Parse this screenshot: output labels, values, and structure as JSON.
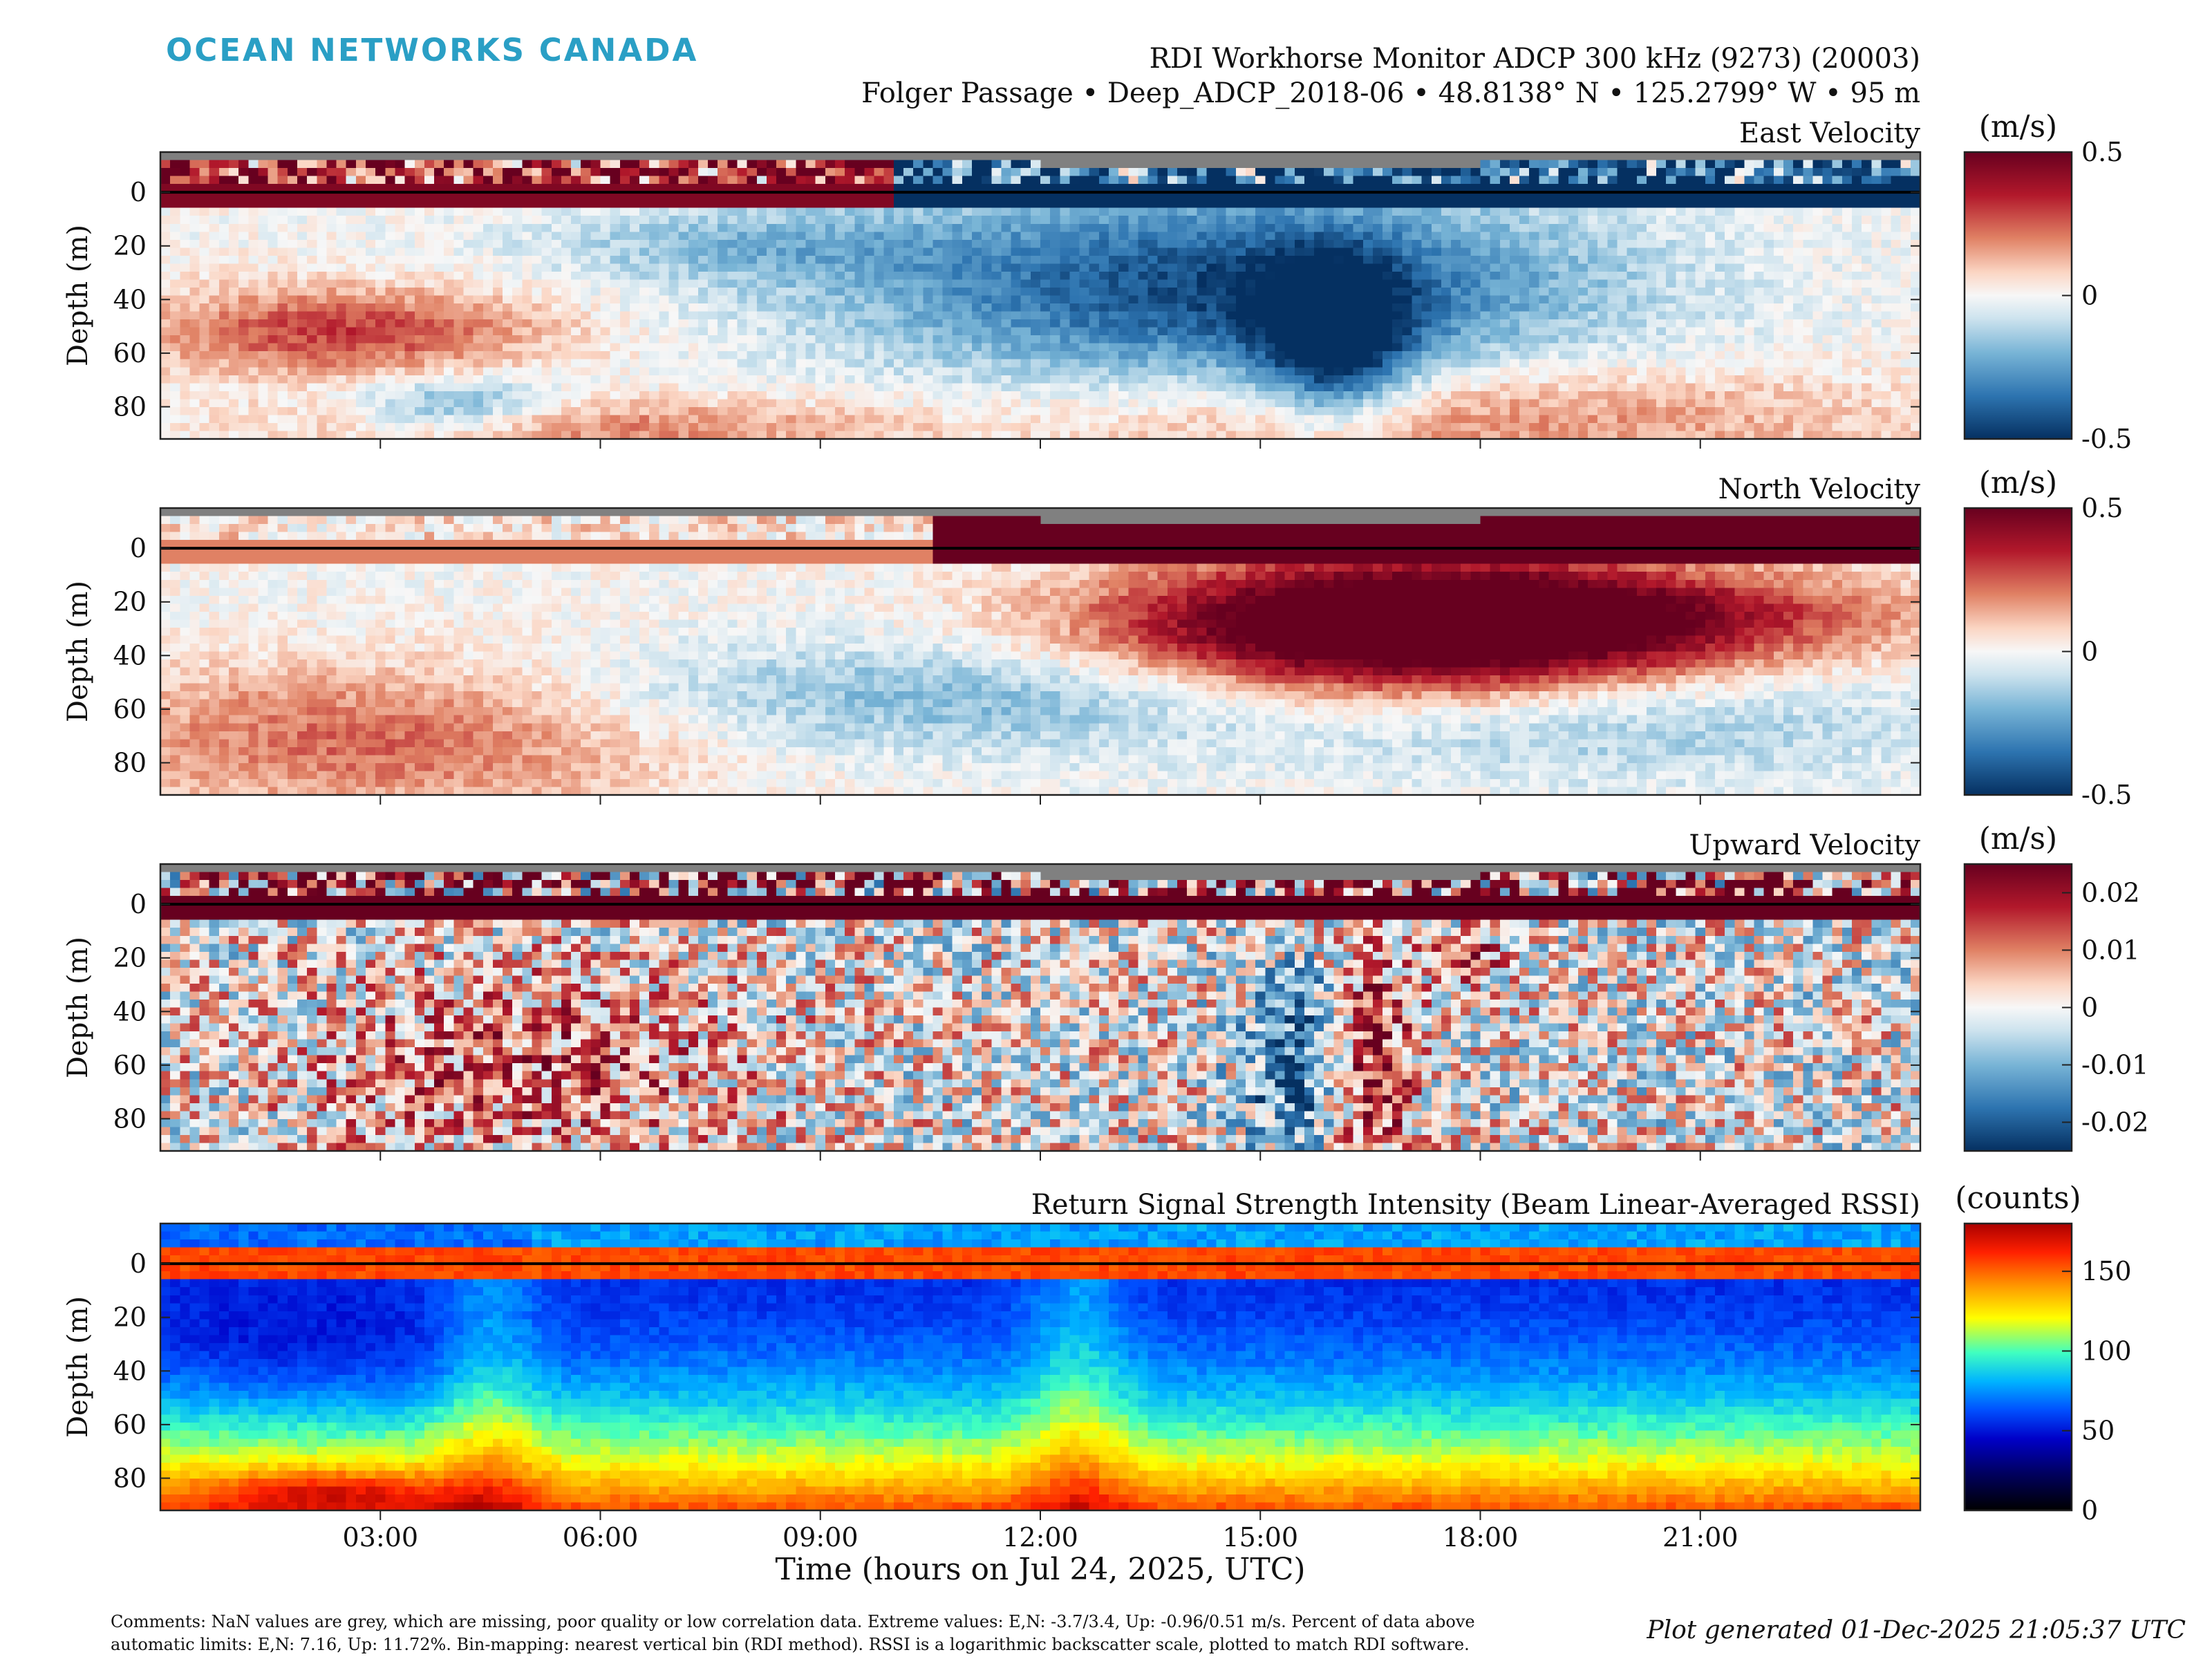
{
  "header": {
    "logo": "OCEAN NETWORKS CANADA",
    "title": "RDI Workhorse Monitor ADCP 300 kHz (9273) (20003)",
    "subtitle": "Folger Passage • Deep_ADCP_2018-06 • 48.8138° N • 125.2799° W • 95 m"
  },
  "chart_data": [
    {
      "type": "heatmap",
      "title": "East Velocity",
      "ylabel": "Depth (m)",
      "ylim": [
        92,
        -15
      ],
      "yticks": [
        "0",
        "20",
        "40",
        "60",
        "80"
      ],
      "colorbar_unit": "(m/s)",
      "colorbar_ticks": [
        "0.5",
        "0",
        "-0.5"
      ],
      "clim": [
        -0.5,
        0.5
      ],
      "colormap": "diverging red-white-blue"
    },
    {
      "type": "heatmap",
      "title": "North Velocity",
      "ylabel": "Depth (m)",
      "ylim": [
        92,
        -15
      ],
      "yticks": [
        "0",
        "20",
        "40",
        "60",
        "80"
      ],
      "colorbar_unit": "(m/s)",
      "colorbar_ticks": [
        "0.5",
        "0",
        "-0.5"
      ],
      "clim": [
        -0.5,
        0.5
      ],
      "colormap": "diverging red-white-blue"
    },
    {
      "type": "heatmap",
      "title": "Upward Velocity",
      "ylabel": "Depth (m)",
      "ylim": [
        92,
        -15
      ],
      "yticks": [
        "0",
        "20",
        "40",
        "60",
        "80"
      ],
      "colorbar_unit": "(m/s)",
      "colorbar_ticks": [
        "0.02",
        "0.01",
        "0",
        "-0.01",
        "-0.02"
      ],
      "clim": [
        -0.025,
        0.025
      ],
      "colormap": "diverging red-white-blue"
    },
    {
      "type": "heatmap",
      "title": "Return Signal Strength Intensity (Beam Linear-Averaged RSSI)",
      "ylabel": "Depth (m)",
      "ylim": [
        92,
        -15
      ],
      "yticks": [
        "0",
        "20",
        "40",
        "60",
        "80"
      ],
      "colorbar_unit": "(counts)",
      "colorbar_ticks": [
        "150",
        "100",
        "50",
        "0"
      ],
      "clim": [
        0,
        180
      ],
      "colormap": "jet",
      "xlabel": "Time (hours on Jul 24, 2025, UTC)",
      "xticks": [
        "03:00",
        "06:00",
        "09:00",
        "12:00",
        "15:00",
        "18:00",
        "21:00"
      ]
    }
  ],
  "footer": {
    "comments_line1": "Comments: NaN values are grey, which are missing, poor quality or low correlation data. Extreme values: E,N: -3.7/3.4, Up: -0.96/0.51 m/s. Percent of data above",
    "comments_line2": "automatic limits: E,N: 7.16, Up: 11.72%. Bin-mapping: nearest vertical bin (RDI method). RSSI is a logarithmic backscatter scale, plotted to match RDI software.",
    "generated": "Plot generated 01-Dec-2025 21:05:37 UTC"
  },
  "colors": {
    "nan_grey": "#808080",
    "diverging_max": "#67001f",
    "diverging_mid": "#f7f7f7",
    "diverging_min": "#053061",
    "logo": "#2a9fc5"
  }
}
